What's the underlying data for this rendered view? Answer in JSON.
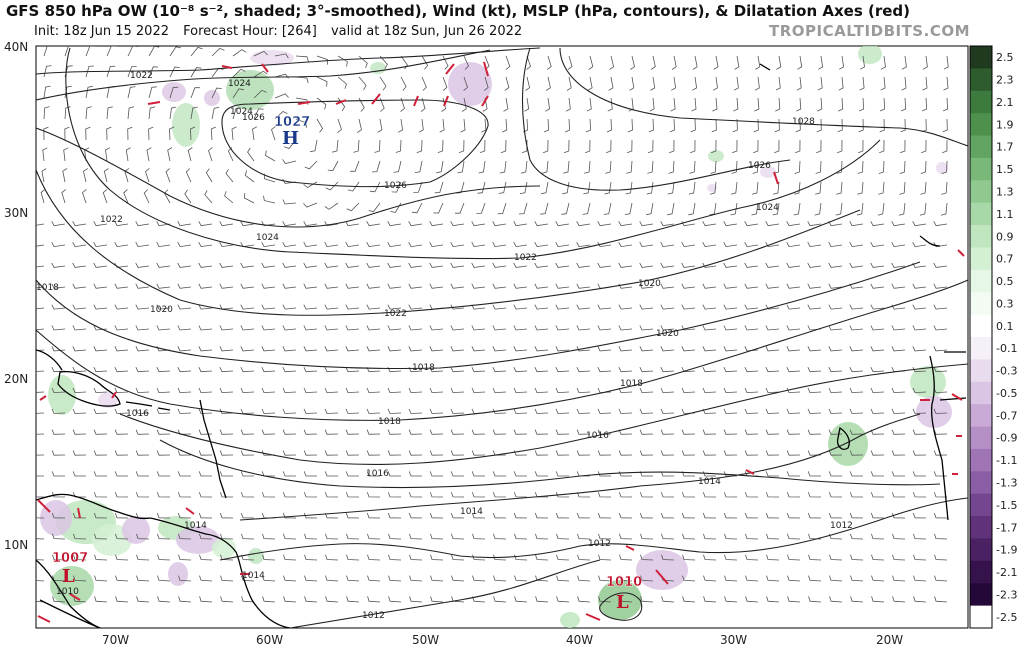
{
  "header": {
    "title": "GFS 850 hPa OW (10⁻⁸ s⁻², shaded; 3°-smoothed), Wind (kt), MSLP (hPa, contours), & Dilatation Axes (red)",
    "init": "Init: 18z Jun 15 2022",
    "forecast_hour": "Forecast Hour: [264]",
    "valid": "valid at 18z Sun, Jun 26 2022",
    "credit": "TROPICALTIDBITS.COM"
  },
  "map": {
    "lat_labels": [
      "40N",
      "30N",
      "20N",
      "10N"
    ],
    "lon_labels": [
      "70W",
      "60W",
      "50W",
      "40W",
      "30W",
      "20W"
    ],
    "isobar_labels": [
      "1022",
      "1024",
      "1026",
      "1028",
      "1026",
      "1024",
      "1022",
      "1024",
      "1022",
      "1020",
      "1018",
      "1020",
      "1022",
      "1020",
      "1018",
      "1016",
      "1018",
      "1016",
      "1016",
      "1014",
      "1014",
      "1014",
      "1012",
      "1012",
      "1014",
      "1010",
      "1012",
      "1024",
      "1026",
      "1018"
    ],
    "pressure_centers": [
      {
        "type": "H",
        "value": "1027",
        "color": "#1a3a8a"
      },
      {
        "type": "L",
        "value": "1007",
        "color": "#c0102a"
      },
      {
        "type": "L",
        "value": "1010",
        "color": "#c0102a"
      }
    ]
  },
  "colorbar": {
    "labels": [
      "2.5",
      "2.3",
      "2.1",
      "1.9",
      "1.7",
      "1.5",
      "1.3",
      "1.1",
      "0.9",
      "0.7",
      "0.5",
      "0.3",
      "0.1",
      "-0.1",
      "-0.3",
      "-0.5",
      "-0.7",
      "-0.9",
      "-1.1",
      "-1.3",
      "-1.5",
      "-1.7",
      "-1.9",
      "-2.1",
      "-2.3",
      "-2.5"
    ],
    "positive_colors": [
      "#1f3a1f",
      "#2e5c2e",
      "#3d7a3d",
      "#4d914d",
      "#62a562",
      "#79b879",
      "#90c990",
      "#a8d8a8",
      "#bfe6bf",
      "#d3f0d3",
      "#e6f7e6",
      "#f3fbf3"
    ],
    "negative_colors": [
      "#f6f0f8",
      "#eadcef",
      "#dbc5e4",
      "#c9aad6",
      "#b590c7",
      "#9f75b6",
      "#8a5ea4",
      "#744690",
      "#5f327a",
      "#4a2163",
      "#36124c",
      "#240838"
    ],
    "neutral_color": "#ffffff"
  }
}
